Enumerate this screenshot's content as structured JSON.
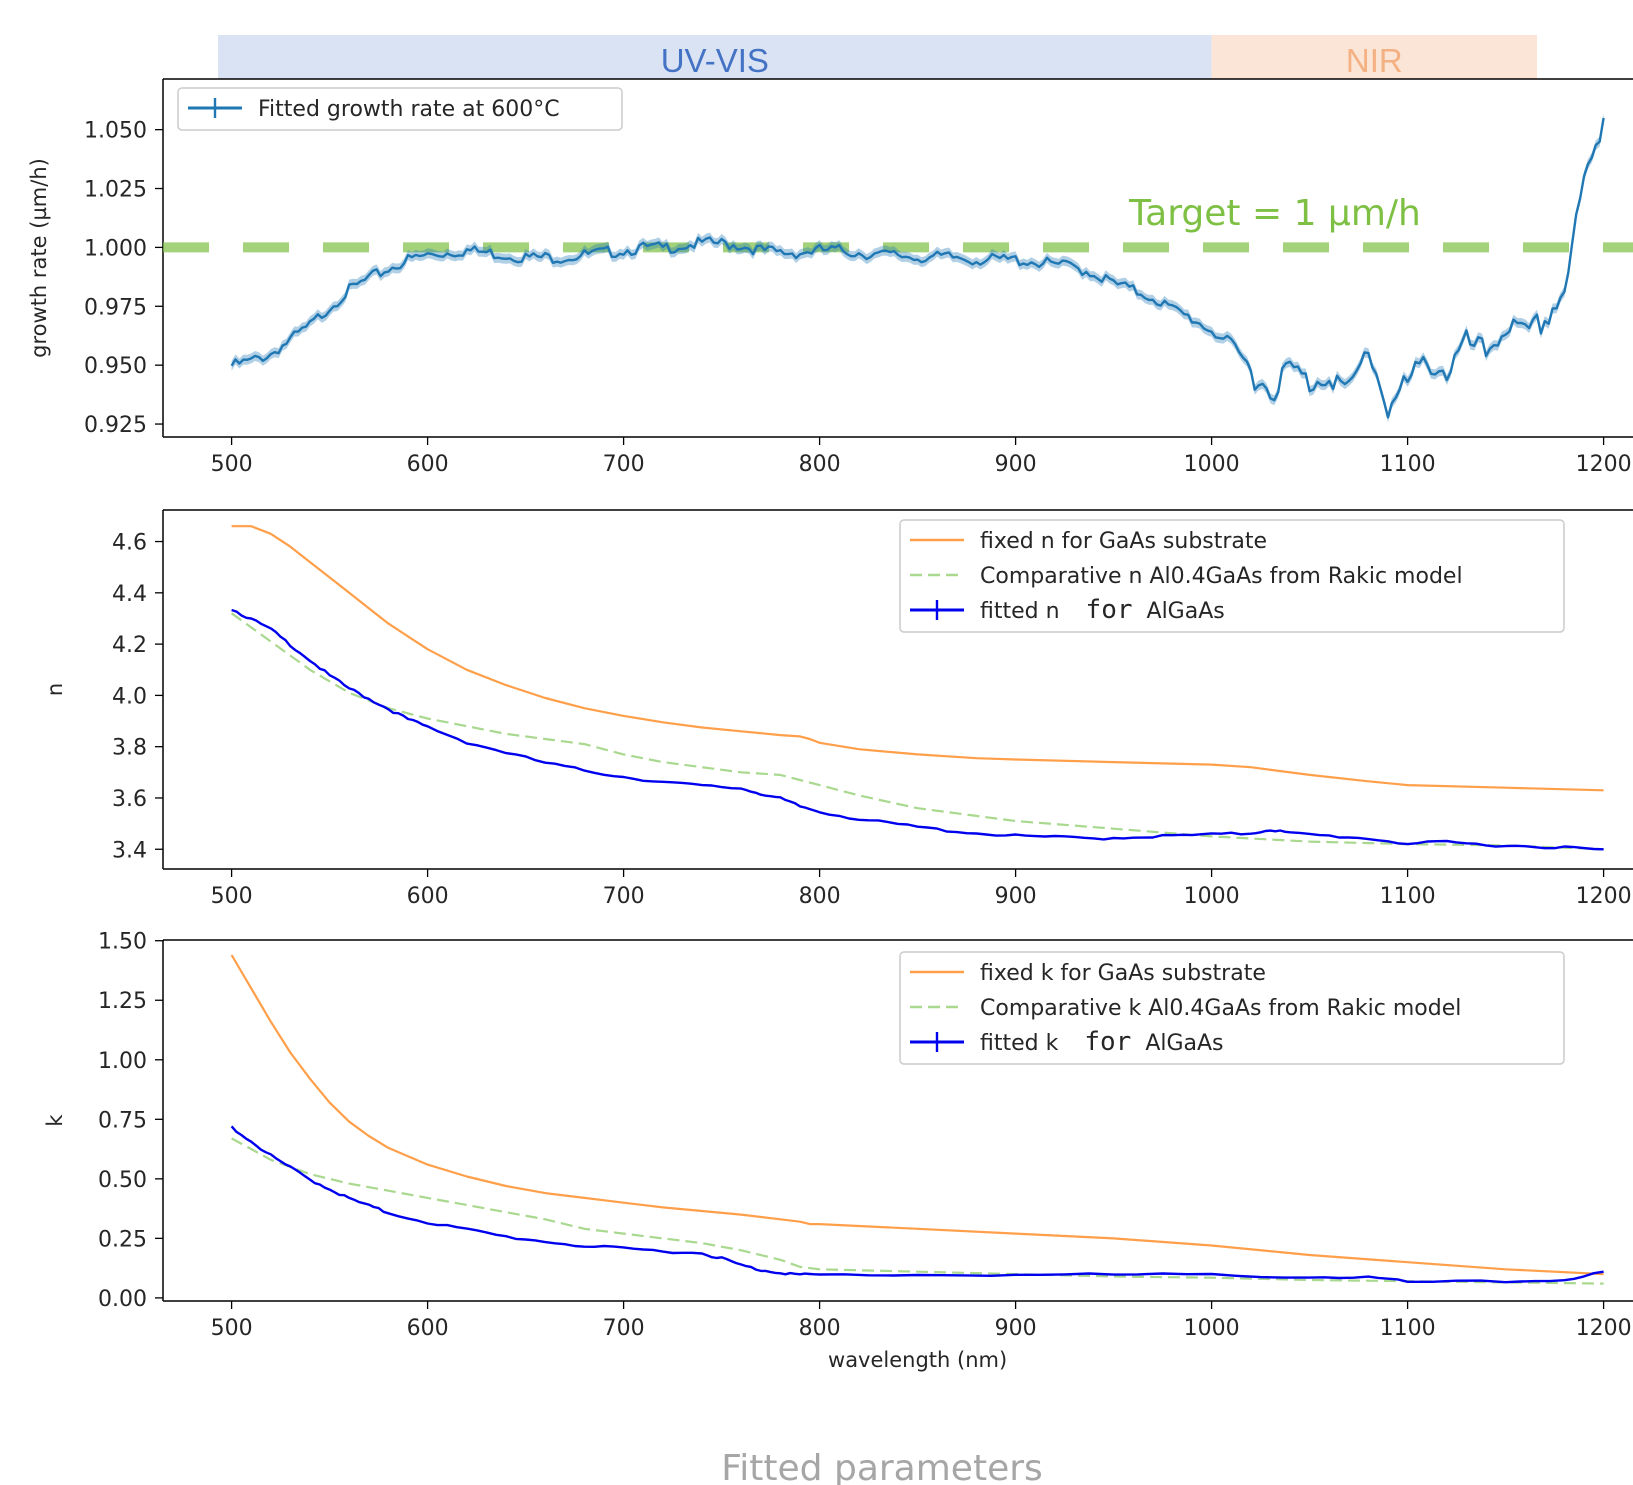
{
  "caption": "Fitted parameters",
  "bands": [
    {
      "label": "UV-VIS",
      "from": 465,
      "to": 1000,
      "fill": "#dae3f3",
      "text_color": "#4472c4"
    },
    {
      "label": "NIR",
      "from": 1000,
      "to": 1215,
      "fill": "#fbe5d6",
      "text_color": "#f4b183"
    }
  ],
  "colors": {
    "blue": "#1f77b4",
    "orange": "#ff9f4a",
    "green": "#a9d88f",
    "darkblue": "#0000ee",
    "target": "#7dc043"
  },
  "chart_data": [
    {
      "type": "line",
      "xlabel": "",
      "ylabel": "growth rate (µm/h)",
      "xlim": [
        465,
        1215
      ],
      "ylim": [
        0.9195,
        1.0715
      ],
      "xticks": [
        500,
        600,
        700,
        800,
        900,
        1000,
        1100,
        1200
      ],
      "yticks": [
        {
          "value": 0.925,
          "label": "0.925"
        },
        {
          "value": 0.95,
          "label": "0.950"
        },
        {
          "value": 0.975,
          "label": "0.975"
        },
        {
          "value": 1.0,
          "label": "1.000"
        },
        {
          "value": 1.025,
          "label": "1.025"
        },
        {
          "value": 1.05,
          "label": "1.050"
        }
      ],
      "legend_position": "upper left",
      "target": {
        "value": 1.0,
        "label": "Target = 1 µm/h"
      },
      "series": [
        {
          "name": "Fitted growth rate at 600°C",
          "color": "#1f77b4",
          "style": "solid",
          "errorbar": true,
          "x": [
            500,
            510,
            520,
            530,
            540,
            550,
            560,
            570,
            580,
            590,
            600,
            610,
            620,
            630,
            640,
            650,
            660,
            670,
            680,
            690,
            700,
            710,
            720,
            730,
            740,
            750,
            760,
            770,
            780,
            790,
            800,
            810,
            820,
            830,
            840,
            850,
            860,
            870,
            880,
            890,
            900,
            910,
            920,
            930,
            940,
            950,
            960,
            970,
            980,
            990,
            1000,
            1010,
            1020,
            1030,
            1040,
            1050,
            1060,
            1070,
            1080,
            1090,
            1100,
            1110,
            1120,
            1130,
            1140,
            1150,
            1160,
            1170,
            1180,
            1190,
            1200
          ],
          "values": [
            0.951,
            0.953,
            0.956,
            0.962,
            0.968,
            0.976,
            0.983,
            0.988,
            0.992,
            0.996,
            0.998,
            0.999,
            1.0,
            0.999,
            0.998,
            0.997,
            0.997,
            0.997,
            0.998,
            0.999,
            1.0,
            1.001,
            1.001,
            1.002,
            1.003,
            1.003,
            1.002,
            1.0,
            0.999,
            0.999,
            1.0,
            1.0,
            0.999,
            0.998,
            0.998,
            0.997,
            0.997,
            0.997,
            0.996,
            0.996,
            0.996,
            0.995,
            0.994,
            0.993,
            0.99,
            0.986,
            0.983,
            0.98,
            0.975,
            0.971,
            0.966,
            0.96,
            0.95,
            0.942,
            0.952,
            0.945,
            0.95,
            0.941,
            0.96,
            0.935,
            0.945,
            0.955,
            0.95,
            0.962,
            0.958,
            0.97,
            0.965,
            0.972,
            0.985,
            1.03,
            1.055
          ]
        }
      ]
    },
    {
      "type": "line",
      "xlabel": "",
      "ylabel": "n",
      "xlim": [
        465,
        1215
      ],
      "ylim": [
        3.323,
        4.723
      ],
      "xticks": [
        500,
        600,
        700,
        800,
        900,
        1000,
        1100,
        1200
      ],
      "yticks": [
        {
          "value": 3.4,
          "label": "3.4"
        },
        {
          "value": 3.6,
          "label": "3.6"
        },
        {
          "value": 3.8,
          "label": "3.8"
        },
        {
          "value": 4.0,
          "label": "4.0"
        },
        {
          "value": 4.2,
          "label": "4.2"
        },
        {
          "value": 4.4,
          "label": "4.4"
        },
        {
          "value": 4.6,
          "label": "4.6"
        }
      ],
      "legend_position": "upper right",
      "series": [
        {
          "name": "fixed n for GaAs substrate",
          "color": "#ff9f4a",
          "style": "solid",
          "x": [
            500,
            510,
            520,
            530,
            540,
            550,
            560,
            570,
            580,
            590,
            600,
            620,
            640,
            660,
            680,
            700,
            720,
            740,
            760,
            780,
            790,
            795,
            800,
            820,
            850,
            880,
            900,
            950,
            1000,
            1020,
            1050,
            1080,
            1100,
            1150,
            1200
          ],
          "values": [
            4.66,
            4.66,
            4.63,
            4.58,
            4.52,
            4.46,
            4.4,
            4.34,
            4.28,
            4.23,
            4.18,
            4.1,
            4.04,
            3.99,
            3.95,
            3.92,
            3.895,
            3.875,
            3.86,
            3.845,
            3.84,
            3.83,
            3.815,
            3.79,
            3.77,
            3.755,
            3.75,
            3.74,
            3.73,
            3.72,
            3.69,
            3.665,
            3.65,
            3.64,
            3.63
          ]
        },
        {
          "name": "Comparative n Al0.4GaAs from Rakic model",
          "color": "#a9d88f",
          "style": "dashed",
          "x": [
            500,
            520,
            540,
            560,
            580,
            600,
            620,
            640,
            660,
            680,
            700,
            720,
            740,
            760,
            780,
            790,
            800,
            820,
            850,
            880,
            900,
            950,
            1000,
            1050,
            1100,
            1150,
            1200
          ],
          "values": [
            4.32,
            4.21,
            4.1,
            4.01,
            3.95,
            3.91,
            3.88,
            3.85,
            3.83,
            3.81,
            3.77,
            3.74,
            3.72,
            3.7,
            3.69,
            3.67,
            3.65,
            3.61,
            3.56,
            3.53,
            3.51,
            3.48,
            3.45,
            3.43,
            3.42,
            3.415,
            3.4
          ]
        },
        {
          "name": "fitted n",
          "name_suffix": "for",
          "name_extra": "AlGaAs",
          "color": "#0000ee",
          "style": "solid",
          "errorbar": true,
          "x": [
            500,
            510,
            520,
            530,
            540,
            550,
            560,
            570,
            580,
            590,
            600,
            620,
            640,
            660,
            680,
            700,
            720,
            740,
            760,
            770,
            780,
            790,
            800,
            820,
            840,
            860,
            880,
            900,
            920,
            940,
            960,
            980,
            1000,
            1020,
            1030,
            1040,
            1060,
            1080,
            1100,
            1120,
            1140,
            1160,
            1180,
            1200
          ],
          "values": [
            4.34,
            4.3,
            4.26,
            4.2,
            4.14,
            4.08,
            4.03,
            3.99,
            3.95,
            3.91,
            3.88,
            3.82,
            3.78,
            3.74,
            3.71,
            3.685,
            3.665,
            3.65,
            3.64,
            3.62,
            3.6,
            3.57,
            3.55,
            3.52,
            3.5,
            3.48,
            3.465,
            3.455,
            3.45,
            3.445,
            3.45,
            3.455,
            3.46,
            3.465,
            3.48,
            3.465,
            3.455,
            3.445,
            3.425,
            3.43,
            3.42,
            3.415,
            3.41,
            3.4
          ]
        }
      ]
    },
    {
      "type": "line",
      "xlabel": "wavelength (nm)",
      "ylabel": "k",
      "xlim": [
        465,
        1215
      ],
      "ylim": [
        -0.013,
        1.503
      ],
      "xticks": [
        500,
        600,
        700,
        800,
        900,
        1000,
        1100,
        1200
      ],
      "yticks": [
        {
          "value": 0.0,
          "label": "0.00"
        },
        {
          "value": 0.25,
          "label": "0.25"
        },
        {
          "value": 0.5,
          "label": "0.50"
        },
        {
          "value": 0.75,
          "label": "0.75"
        },
        {
          "value": 1.0,
          "label": "1.00"
        },
        {
          "value": 1.25,
          "label": "1.25"
        },
        {
          "value": 1.5,
          "label": "1.50"
        }
      ],
      "legend_position": "upper right",
      "series": [
        {
          "name": "fixed k for GaAs substrate",
          "color": "#ff9f4a",
          "style": "solid",
          "x": [
            500,
            510,
            520,
            530,
            540,
            550,
            560,
            570,
            580,
            600,
            620,
            640,
            660,
            680,
            700,
            720,
            740,
            760,
            780,
            790,
            795,
            800,
            850,
            900,
            950,
            1000,
            1050,
            1100,
            1150,
            1200
          ],
          "values": [
            1.44,
            1.3,
            1.16,
            1.03,
            0.92,
            0.82,
            0.74,
            0.68,
            0.63,
            0.56,
            0.51,
            0.47,
            0.44,
            0.42,
            0.4,
            0.38,
            0.365,
            0.35,
            0.33,
            0.32,
            0.31,
            0.31,
            0.29,
            0.27,
            0.25,
            0.22,
            0.18,
            0.15,
            0.12,
            0.1
          ]
        },
        {
          "name": "Comparative k Al0.4GaAs from Rakic model",
          "color": "#a9d88f",
          "style": "dashed",
          "x": [
            500,
            520,
            540,
            560,
            580,
            600,
            620,
            640,
            660,
            680,
            700,
            720,
            740,
            760,
            780,
            790,
            800,
            850,
            900,
            950,
            1000,
            1050,
            1100,
            1150,
            1200
          ],
          "values": [
            0.67,
            0.58,
            0.52,
            0.48,
            0.45,
            0.42,
            0.39,
            0.36,
            0.33,
            0.29,
            0.27,
            0.25,
            0.23,
            0.2,
            0.16,
            0.13,
            0.12,
            0.11,
            0.1,
            0.09,
            0.085,
            0.075,
            0.07,
            0.065,
            0.06
          ]
        },
        {
          "name": "fitted k",
          "name_suffix": "for",
          "name_extra": "AlGaAs",
          "color": "#0000ee",
          "style": "solid",
          "errorbar": true,
          "x": [
            500,
            510,
            520,
            530,
            540,
            550,
            560,
            570,
            580,
            600,
            620,
            640,
            660,
            680,
            700,
            720,
            740,
            750,
            760,
            770,
            780,
            790,
            800,
            850,
            900,
            950,
            1000,
            1050,
            1080,
            1100,
            1150,
            1180,
            1200
          ],
          "values": [
            0.72,
            0.66,
            0.6,
            0.55,
            0.5,
            0.46,
            0.42,
            0.39,
            0.36,
            0.32,
            0.29,
            0.26,
            0.24,
            0.22,
            0.21,
            0.2,
            0.19,
            0.17,
            0.14,
            0.12,
            0.11,
            0.1,
            0.1,
            0.1,
            0.1,
            0.1,
            0.1,
            0.09,
            0.09,
            0.07,
            0.07,
            0.08,
            0.11
          ]
        }
      ]
    }
  ]
}
